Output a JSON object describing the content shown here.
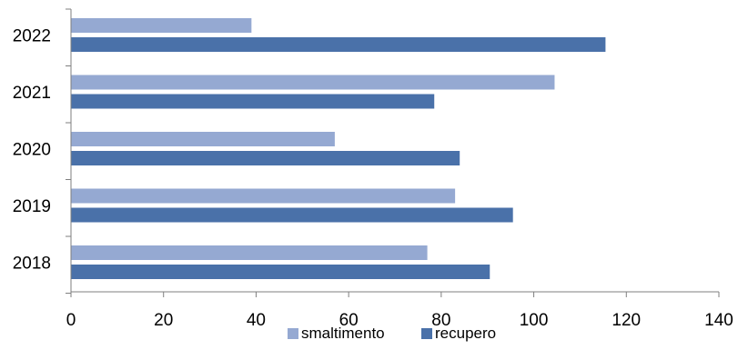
{
  "chart_data": {
    "type": "bar",
    "orientation": "horizontal",
    "categories": [
      "2022",
      "2021",
      "2020",
      "2019",
      "2018"
    ],
    "series": [
      {
        "name": "smaltimento",
        "color": "#95A9D2",
        "values": [
          39,
          104.5,
          57,
          83,
          77
        ]
      },
      {
        "name": "recupero",
        "color": "#4A71A9",
        "values": [
          115.5,
          78.5,
          84,
          95.5,
          90.5
        ]
      }
    ],
    "x_ticks": [
      "0",
      "20",
      "40",
      "60",
      "80",
      "100",
      "120",
      "140"
    ],
    "xlim": [
      0,
      140
    ],
    "grid": false,
    "legend_position": "bottom"
  }
}
